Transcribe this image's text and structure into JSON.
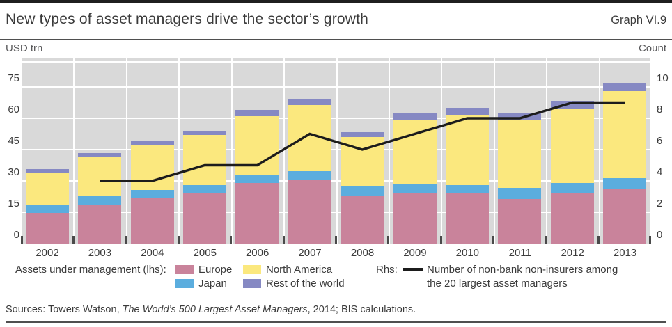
{
  "header": {
    "title": "New types of asset managers drive the sector’s growth",
    "graph_label": "Graph VI.9"
  },
  "axes": {
    "left_unit": "USD trn",
    "right_unit": "Count"
  },
  "legend": {
    "lhs_label": "Assets under management (lhs):",
    "rhs_label": "Rhs:",
    "rhs_series_line1": "Number of non-bank non-insurers among",
    "rhs_series_line2": "the 20 largest asset managers",
    "items": [
      {
        "label": "Europe",
        "color": "#c9839b",
        "row": 0,
        "col": 0
      },
      {
        "label": "Japan",
        "color": "#5badde",
        "row": 1,
        "col": 0
      },
      {
        "label": "North America",
        "color": "#fbe87e",
        "row": 0,
        "col": 1
      },
      {
        "label": "Rest of the world",
        "color": "#8689c3",
        "row": 1,
        "col": 1
      }
    ]
  },
  "sources": {
    "prefix": "Sources: Towers Watson, ",
    "italic": "The World’s 500 Largest Asset Managers",
    "suffix": ", 2014; BIS calculations."
  },
  "chart_data": {
    "type": "bar",
    "subtype": "stacked-bars-with-line-overlay",
    "title": "New types of asset managers drive the sector’s growth",
    "categories": [
      2002,
      2003,
      2004,
      2005,
      2006,
      2007,
      2008,
      2009,
      2010,
      2011,
      2012,
      2013
    ],
    "series": [
      {
        "name": "Europe",
        "color": "#c9839b",
        "values": [
          14.7,
          18.4,
          21.8,
          24.1,
          28.9,
          30.6,
          22.8,
          23.9,
          23.9,
          21.4,
          23.9,
          26.3
        ]
      },
      {
        "name": "Japan",
        "color": "#5badde",
        "values": [
          3.5,
          4.2,
          4.0,
          3.8,
          4.2,
          4.2,
          4.4,
          4.5,
          4.2,
          5.3,
          5.0,
          4.9
        ]
      },
      {
        "name": "North America",
        "color": "#fbe87e",
        "values": [
          15.9,
          19.0,
          21.4,
          24.0,
          28.0,
          31.6,
          23.7,
          30.5,
          33.6,
          32.8,
          35.9,
          41.8
        ]
      },
      {
        "name": "Rest of the world",
        "color": "#8689c3",
        "values": [
          1.6,
          1.8,
          2.0,
          1.9,
          2.8,
          3.1,
          2.5,
          3.3,
          3.4,
          3.3,
          3.6,
          3.8
        ]
      }
    ],
    "line_series": {
      "name": "Number of non-bank non-insurers among the 20 largest asset managers",
      "axis": "rhs",
      "color": "#1c1c1c",
      "values": [
        null,
        4,
        4,
        5,
        5,
        7,
        6,
        7,
        8,
        8,
        9,
        9
      ]
    },
    "lhs_axis": {
      "label": "USD trn",
      "ticks": [
        0,
        15,
        30,
        45,
        60,
        75
      ],
      "range": [
        0,
        88.5
      ]
    },
    "rhs_axis": {
      "label": "Count",
      "ticks": [
        0,
        2,
        4,
        6,
        8,
        10
      ],
      "range": [
        0,
        11.8
      ]
    },
    "gridlines": {
      "horizontal_values": [
        15,
        30,
        45,
        60,
        75
      ],
      "vertical": "between-year-slots",
      "color": "#ffffff"
    },
    "plot_background": "#d9d9d9"
  }
}
